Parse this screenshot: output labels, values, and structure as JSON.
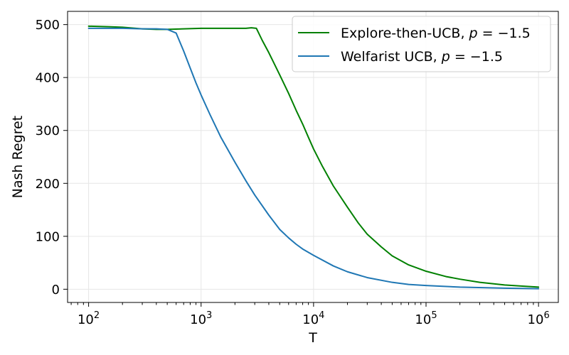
{
  "chart_data": {
    "type": "line",
    "title": "",
    "xlabel": "T",
    "ylabel": "Nash Regret",
    "xscale": "log",
    "xlim": [
      65,
      1500000
    ],
    "ylim": [
      -25,
      525
    ],
    "grid": true,
    "legend_position": "top-right",
    "x_ticks": [
      {
        "value": 100,
        "base": "10",
        "exp": "2"
      },
      {
        "value": 1000,
        "base": "10",
        "exp": "3"
      },
      {
        "value": 10000,
        "base": "10",
        "exp": "4"
      },
      {
        "value": 100000,
        "base": "10",
        "exp": "5"
      },
      {
        "value": 1000000,
        "base": "10",
        "exp": "6"
      }
    ],
    "y_ticks": [
      {
        "value": 0,
        "label": "0"
      },
      {
        "value": 100,
        "label": "100"
      },
      {
        "value": 200,
        "label": "200"
      },
      {
        "value": 300,
        "label": "300"
      },
      {
        "value": 400,
        "label": "400"
      },
      {
        "value": 500,
        "label": "500"
      }
    ],
    "series": [
      {
        "name": "Explore-then-UCB, p = −1.5",
        "legend_prefix": "Explore-then-UCB, ",
        "legend_var": "p",
        "legend_suffix": " = −1.5",
        "color": "#008000",
        "points": [
          [
            100,
            497
          ],
          [
            150,
            496
          ],
          [
            200,
            495
          ],
          [
            300,
            492
          ],
          [
            400,
            491
          ],
          [
            500,
            491
          ],
          [
            700,
            492
          ],
          [
            1000,
            493
          ],
          [
            1500,
            493
          ],
          [
            2000,
            493
          ],
          [
            2500,
            493
          ],
          [
            2800,
            494
          ],
          [
            3100,
            493
          ],
          [
            3500,
            470
          ],
          [
            4000,
            447
          ],
          [
            5000,
            405
          ],
          [
            6000,
            370
          ],
          [
            7000,
            338
          ],
          [
            8000,
            312
          ],
          [
            9000,
            287
          ],
          [
            10000,
            265
          ],
          [
            12000,
            232
          ],
          [
            15000,
            195
          ],
          [
            20000,
            155
          ],
          [
            25000,
            125
          ],
          [
            30000,
            104
          ],
          [
            40000,
            80
          ],
          [
            50000,
            63
          ],
          [
            70000,
            46
          ],
          [
            100000,
            34
          ],
          [
            150000,
            24
          ],
          [
            200000,
            19
          ],
          [
            300000,
            13
          ],
          [
            500000,
            8
          ],
          [
            700000,
            6
          ],
          [
            1000000,
            4
          ]
        ]
      },
      {
        "name": "Welfarist UCB, p = −1.5",
        "legend_prefix": "Welfarist UCB, ",
        "legend_var": "p",
        "legend_suffix": " = −1.5",
        "color": "#1f77b4",
        "points": [
          [
            100,
            493
          ],
          [
            200,
            493
          ],
          [
            300,
            492
          ],
          [
            400,
            492
          ],
          [
            500,
            491
          ],
          [
            600,
            484
          ],
          [
            700,
            450
          ],
          [
            800,
            418
          ],
          [
            900,
            390
          ],
          [
            1000,
            367
          ],
          [
            1200,
            330
          ],
          [
            1500,
            287
          ],
          [
            2000,
            240
          ],
          [
            2500,
            205
          ],
          [
            3000,
            178
          ],
          [
            4000,
            140
          ],
          [
            5000,
            113
          ],
          [
            6000,
            97
          ],
          [
            7000,
            85
          ],
          [
            8000,
            76
          ],
          [
            10000,
            64
          ],
          [
            15000,
            44
          ],
          [
            20000,
            33
          ],
          [
            30000,
            22
          ],
          [
            50000,
            13
          ],
          [
            70000,
            9
          ],
          [
            100000,
            7
          ],
          [
            200000,
            4
          ],
          [
            500000,
            2
          ],
          [
            1000000,
            1
          ]
        ]
      }
    ]
  }
}
